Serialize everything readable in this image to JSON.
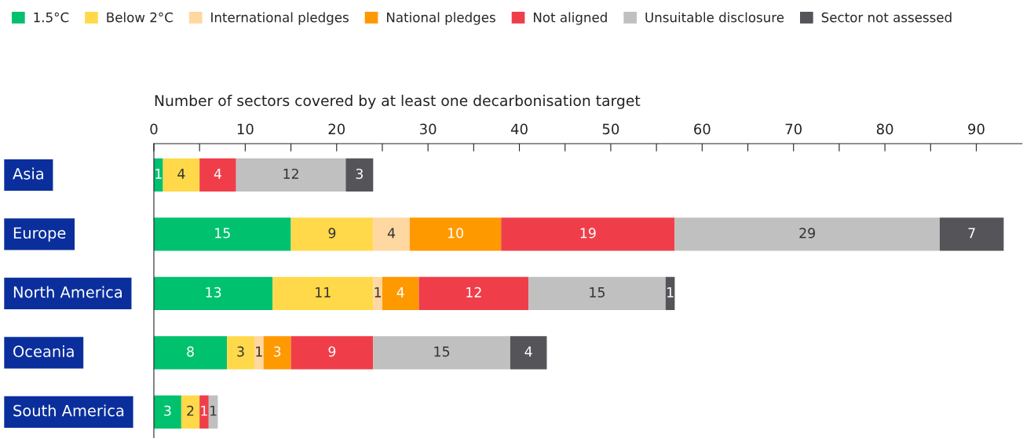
{
  "chart_data": {
    "type": "bar",
    "orientation": "horizontal",
    "stacked": true,
    "xlabel": "Number of sectors covered by at least one decarbonisation target",
    "categories": [
      "Asia",
      "Europe",
      "North America",
      "Oceania",
      "South America"
    ],
    "series": [
      {
        "name": "1.5°C",
        "color": "#00c16e",
        "values": [
          1,
          15,
          13,
          8,
          3
        ]
      },
      {
        "name": "Below 2°C",
        "color": "#ffd94a",
        "values": [
          4,
          9,
          11,
          3,
          2
        ]
      },
      {
        "name": "International pledges",
        "color": "#ffd7a0",
        "values": [
          null,
          4,
          1,
          1,
          null
        ]
      },
      {
        "name": "National pledges",
        "color": "#ff9900",
        "values": [
          null,
          10,
          4,
          3,
          null
        ]
      },
      {
        "name": "Not aligned",
        "color": "#ef3e4a",
        "values": [
          4,
          19,
          12,
          9,
          1
        ]
      },
      {
        "name": "Unsuitable disclosure",
        "color": "#c0c0c0",
        "values": [
          12,
          29,
          15,
          15,
          1
        ]
      },
      {
        "name": "Sector not assessed",
        "color": "#555559",
        "values": [
          3,
          7,
          1,
          4,
          null
        ]
      }
    ],
    "xlim": [
      0,
      95
    ],
    "xticks": [
      0,
      {
        "value": 5,
        "label": null
      },
      10,
      {
        "value": 15,
        "label": null
      },
      20,
      {
        "value": 25,
        "label": null
      },
      30,
      {
        "value": 35,
        "label": null
      },
      40,
      {
        "value": 45,
        "label": null
      },
      50,
      {
        "value": 55,
        "label": null
      },
      60,
      {
        "value": 65,
        "label": null
      },
      70,
      {
        "value": 75,
        "label": null
      },
      80,
      {
        "value": 85,
        "label": null
      },
      90
    ],
    "data_labels": true,
    "legend": "top left",
    "grid": false
  }
}
